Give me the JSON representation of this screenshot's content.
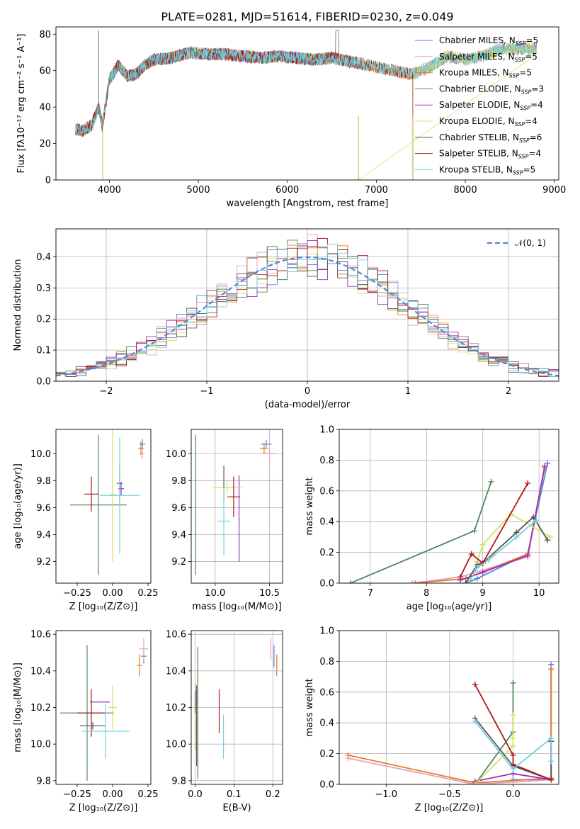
{
  "title": "PLATE=0281, MJD=51614, FIBERID=0230, z=0.049",
  "colors": {
    "chabrier_miles": "#5b84d6",
    "salpeter_miles": "#e7a0c0",
    "kroupa_miles": "#e07b2a",
    "chabrier_elodie": "#4f8a5a",
    "salpeter_elodie": "#9b30c0",
    "kroupa_elodie": "#d8e060",
    "chabrier_stelib": "#555555",
    "salpeter_stelib": "#b01818",
    "kroupa_stelib": "#70d0e0"
  },
  "chart_data": [
    {
      "id": "spectrum",
      "type": "line",
      "xlabel": "wavelength [Angstrom, rest frame]",
      "ylabel": "Flux [fλ10⁻¹⁷ erg cm⁻² s⁻¹ A⁻¹]",
      "xlim": [
        3400,
        9050
      ],
      "ylim": [
        0,
        84
      ],
      "xticks": [
        4000,
        5000,
        6000,
        7000,
        8000,
        9000
      ],
      "yticks": [
        0,
        20,
        40,
        60,
        80
      ],
      "legend_position": "top-right",
      "series": [
        {
          "name": "Chabrier MILES, N_SSP=5",
          "label": "Chabrier MILES, N",
          "sub": "SSP",
          "suffix": "=5",
          "color": "#5b84d6"
        },
        {
          "name": "Salpeter MILES, N_SSP=5",
          "label": "Salpeter MILES, N",
          "sub": "SSP",
          "suffix": "=5",
          "color": "#e7a0c0"
        },
        {
          "name": "Kroupa MILES, N_SSP=5",
          "label": "Kroupa MILES, N",
          "sub": "SSP",
          "suffix": "=5",
          "color": "#e07b2a"
        },
        {
          "name": "Chabrier ELODIE, N_SSP=3",
          "label": "Chabrier ELODIE, N",
          "sub": "SSP",
          "suffix": "=3",
          "color": "#4f8a5a"
        },
        {
          "name": "Salpeter ELODIE, N_SSP=4",
          "label": "Salpeter ELODIE, N",
          "sub": "SSP",
          "suffix": "=4",
          "color": "#9b30c0"
        },
        {
          "name": "Kroupa ELODIE, N_SSP=4",
          "label": "Kroupa ELODIE, N",
          "sub": "SSP",
          "suffix": "=4",
          "color": "#d8e060"
        },
        {
          "name": "Chabrier STELIB, N_SSP=6",
          "label": "Chabrier STELIB, N",
          "sub": "SSP",
          "suffix": "=6",
          "color": "#555555"
        },
        {
          "name": "Salpeter STELIB, N_SSP=4",
          "label": "Salpeter STELIB, N",
          "sub": "SSP",
          "suffix": "=4",
          "color": "#b01818"
        },
        {
          "name": "Kroupa STELIB, N_SSP=5",
          "label": "Kroupa STELIB, N",
          "sub": "SSP",
          "suffix": "=5",
          "color": "#70d0e0"
        }
      ],
      "continuum": {
        "x": [
          3620,
          3700,
          3800,
          3880,
          3920,
          3960,
          4000,
          4100,
          4200,
          4300,
          4400,
          4500,
          4700,
          4900,
          5100,
          5300,
          5500,
          5700,
          5900,
          6100,
          6300,
          6500,
          6700,
          6800,
          7000,
          7200,
          7400,
          7600,
          7800,
          8000,
          8200,
          8400,
          8600,
          8800
        ],
        "y": [
          28,
          27,
          30,
          40,
          30,
          42,
          55,
          63,
          57,
          58,
          63,
          66,
          67,
          70,
          69,
          69,
          68,
          67,
          68,
          67,
          66,
          67,
          65,
          64,
          62,
          60,
          58,
          62,
          68,
          66,
          68,
          72,
          72,
          72
        ]
      },
      "dropouts": [
        3925,
        6800,
        7410
      ]
    },
    {
      "id": "residuals",
      "type": "area",
      "xlabel": "(data-model)/error",
      "ylabel": "Normed distribution",
      "xlim": [
        -2.5,
        2.5
      ],
      "ylim": [
        0,
        0.49
      ],
      "xticks": [
        -2,
        -1,
        0,
        1,
        2
      ],
      "yticks": [
        0.0,
        0.1,
        0.2,
        0.3,
        0.4
      ],
      "grid": true,
      "legend_position": "top-right",
      "reference": {
        "name": "𝒩(0, 1)",
        "mean": 0,
        "sigma": 1,
        "color": "#5b84d6",
        "style": "dashed"
      },
      "bin_width": 0.1
    },
    {
      "id": "age_vs_Z",
      "type": "scatter",
      "xlabel": "Z [log₁₀(Z/Z⊙)]",
      "ylabel": "age  [log₁₀(age/yr)]",
      "xlim": [
        -0.4,
        0.27
      ],
      "ylim": [
        9.04,
        10.18
      ],
      "xticks": [
        -0.25,
        0.0,
        0.25
      ],
      "yticks": [
        9.2,
        9.4,
        9.6,
        9.8,
        10.0
      ],
      "points": [
        {
          "color": "#5b84d6",
          "x": 0.21,
          "xerr": 0.02,
          "y": 10.07,
          "yerr": 0.04
        },
        {
          "color": "#e7a0c0",
          "x": 0.21,
          "xerr": 0.02,
          "y": 10.0,
          "yerr": 0.04
        },
        {
          "color": "#e07b2a",
          "x": 0.2,
          "xerr": 0.02,
          "y": 10.04,
          "yerr": 0.05
        },
        {
          "color": "#4f8a5a",
          "x": -0.1,
          "xerr": 0.2,
          "y": 9.62,
          "yerr": 0.52
        },
        {
          "color": "#9b30c0",
          "x": 0.06,
          "xerr": 0.02,
          "y": 9.74,
          "yerr": 0.05
        },
        {
          "color": "#d8e060",
          "x": 0.0,
          "xerr": 0.02,
          "y": 9.7,
          "yerr": 0.5
        },
        {
          "color": "#555555",
          "x": 0.05,
          "xerr": 0.02,
          "y": 9.78,
          "yerr": 0.13
        },
        {
          "color": "#b01818",
          "x": -0.15,
          "xerr": 0.05,
          "y": 9.7,
          "yerr": 0.13
        },
        {
          "color": "#70d0e0",
          "x": 0.05,
          "xerr": 0.14,
          "y": 9.69,
          "yerr": 0.43
        }
      ]
    },
    {
      "id": "age_vs_mass",
      "type": "scatter",
      "xlabel": "mass [log₁₀(M/M⊙)]",
      "ylabel": "",
      "xlim": [
        9.78,
        10.62
      ],
      "ylim": [
        9.04,
        10.18
      ],
      "xticks": [
        10.0,
        10.5
      ],
      "yticks": [
        9.2,
        9.4,
        9.6,
        9.8,
        10.0
      ],
      "points": [
        {
          "color": "#5b84d6",
          "x": 10.47,
          "xerr": 0.05,
          "y": 10.07,
          "yerr": 0.03
        },
        {
          "color": "#e7a0c0",
          "x": 10.5,
          "xerr": 0.06,
          "y": 10.0,
          "yerr": 0.04
        },
        {
          "color": "#e07b2a",
          "x": 10.45,
          "xerr": 0.04,
          "y": 10.04,
          "yerr": 0.04
        },
        {
          "color": "#4f8a5a",
          "x": 9.82,
          "xerr": 0.0,
          "y": 9.62,
          "yerr": 0.52
        },
        {
          "color": "#9b30c0",
          "x": 10.22,
          "xerr": 0.0,
          "y": 9.52,
          "yerr": 0.32
        },
        {
          "color": "#d8e060",
          "x": 10.11,
          "xerr": 0.13,
          "y": 9.75,
          "yerr": 0.05
        },
        {
          "color": "#555555",
          "x": 10.08,
          "xerr": 0.0,
          "y": 9.78,
          "yerr": 0.13
        },
        {
          "color": "#b01818",
          "x": 10.17,
          "xerr": 0.06,
          "y": 9.68,
          "yerr": 0.15
        },
        {
          "color": "#70d0e0",
          "x": 10.08,
          "xerr": 0.06,
          "y": 9.5,
          "yerr": 0.25
        }
      ]
    },
    {
      "id": "massweight_vs_age",
      "type": "line",
      "xlabel": "age  [log₁₀(age/yr)]",
      "ylabel": "mass weight",
      "xlim": [
        6.45,
        10.35
      ],
      "ylim": [
        0,
        1.0
      ],
      "xticks": [
        7,
        8,
        9,
        10
      ],
      "yticks": [
        0.0,
        0.2,
        0.4,
        0.6,
        0.8,
        1.0
      ],
      "series": [
        {
          "color": "#5b84d6",
          "x": [
            8.7,
            8.9,
            9.8,
            10.15
          ],
          "y": [
            0.0,
            0.03,
            0.19,
            0.78
          ]
        },
        {
          "color": "#e7a0c0",
          "x": [
            7.75,
            8.6,
            9.8,
            10.1
          ],
          "y": [
            0.0,
            0.04,
            0.17,
            0.75
          ]
        },
        {
          "color": "#e07b2a",
          "x": [
            7.8,
            8.7,
            9.8,
            10.1
          ],
          "y": [
            0.0,
            0.03,
            0.19,
            0.75
          ]
        },
        {
          "color": "#4f8a5a",
          "x": [
            6.65,
            8.85,
            9.15
          ],
          "y": [
            0.0,
            0.34,
            0.66
          ]
        },
        {
          "color": "#9b30c0",
          "x": [
            8.6,
            9.0,
            9.8,
            10.1
          ],
          "y": [
            0.02,
            0.07,
            0.18,
            0.76
          ]
        },
        {
          "color": "#d8e060",
          "x": [
            8.9,
            9.0,
            9.5,
            10.2
          ],
          "y": [
            0.14,
            0.25,
            0.45,
            0.3
          ]
        },
        {
          "color": "#555555",
          "x": [
            8.7,
            8.9,
            9.0,
            9.6,
            9.9,
            10.15
          ],
          "y": [
            0.0,
            0.12,
            0.13,
            0.33,
            0.43,
            0.28
          ]
        },
        {
          "color": "#b01818",
          "x": [
            8.6,
            8.8,
            9.0,
            9.8
          ],
          "y": [
            0.04,
            0.19,
            0.13,
            0.65
          ]
        },
        {
          "color": "#70d0e0",
          "x": [
            8.75,
            8.9,
            9.1,
            9.6,
            9.95
          ],
          "y": [
            0.0,
            0.1,
            0.15,
            0.3,
            0.41
          ]
        }
      ]
    },
    {
      "id": "mass_vs_Z",
      "type": "scatter",
      "xlabel": "Z [log₁₀(Z/Z⊙)]",
      "ylabel": "mass [log₁₀(M/M⊙)]",
      "xlim": [
        -0.4,
        0.27
      ],
      "ylim": [
        9.78,
        10.62
      ],
      "xticks": [
        -0.25,
        0.0,
        0.25
      ],
      "yticks": [
        9.8,
        10.0,
        10.2,
        10.4,
        10.6
      ],
      "points": [
        {
          "color": "#5b84d6",
          "x": 0.22,
          "xerr": 0.02,
          "y": 10.48,
          "yerr": 0.04
        },
        {
          "color": "#e7a0c0",
          "x": 0.22,
          "xerr": 0.03,
          "y": 10.52,
          "yerr": 0.06
        },
        {
          "color": "#e07b2a",
          "x": 0.19,
          "xerr": 0.02,
          "y": 10.43,
          "yerr": 0.06
        },
        {
          "color": "#4f8a5a",
          "x": -0.18,
          "xerr": 0.19,
          "y": 10.17,
          "yerr": 0.37
        },
        {
          "color": "#9b30c0",
          "x": -0.09,
          "xerr": 0.07,
          "y": 10.23,
          "yerr": 0.0
        },
        {
          "color": "#d8e060",
          "x": 0.0,
          "xerr": 0.03,
          "y": 10.2,
          "yerr": 0.12
        },
        {
          "color": "#555555",
          "x": -0.14,
          "xerr": 0.09,
          "y": 10.1,
          "yerr": 0.02
        },
        {
          "color": "#b01818",
          "x": -0.15,
          "xerr": 0.1,
          "y": 10.17,
          "yerr": 0.13
        },
        {
          "color": "#70d0e0",
          "x": -0.05,
          "xerr": 0.17,
          "y": 10.07,
          "yerr": 0.15
        }
      ]
    },
    {
      "id": "mass_vs_ebv",
      "type": "scatter",
      "xlabel": "E(B-V)",
      "ylabel": "",
      "xlim": [
        -0.01,
        0.225
      ],
      "ylim": [
        9.78,
        10.62
      ],
      "xticks": [
        0.0,
        0.1,
        0.2
      ],
      "yticks": [
        9.8,
        10.0,
        10.2,
        10.4,
        10.6
      ],
      "points": [
        {
          "color": "#5b84d6",
          "x": 0.203,
          "xerr": 0.0,
          "y": 10.48,
          "yerr": 0.06
        },
        {
          "color": "#e7a0c0",
          "x": 0.195,
          "xerr": 0.0,
          "y": 10.52,
          "yerr": 0.06
        },
        {
          "color": "#e07b2a",
          "x": 0.21,
          "xerr": 0.0,
          "y": 10.43,
          "yerr": 0.06
        },
        {
          "color": "#4f8a5a",
          "x": 0.007,
          "xerr": 0.0,
          "y": 10.17,
          "yerr": 0.36
        },
        {
          "color": "#9b30c0",
          "x": 0.0,
          "xerr": 0.0,
          "y": 10.23,
          "yerr": 0.06
        },
        {
          "color": "#d8e060",
          "x": 0.002,
          "xerr": 0.0,
          "y": 10.15,
          "yerr": 0.18
        },
        {
          "color": "#555555",
          "x": 0.004,
          "xerr": 0.0,
          "y": 10.1,
          "yerr": 0.22
        },
        {
          "color": "#b01818",
          "x": 0.062,
          "xerr": 0.0,
          "y": 10.18,
          "yerr": 0.12
        },
        {
          "color": "#70d0e0",
          "x": 0.073,
          "xerr": 0.0,
          "y": 10.04,
          "yerr": 0.12
        }
      ]
    },
    {
      "id": "massweight_vs_Z",
      "type": "line",
      "xlabel": "Z [log₁₀(Z/Z⊙)]",
      "ylabel": "mass weight",
      "xlim": [
        -1.37,
        0.36
      ],
      "ylim": [
        0,
        1.0
      ],
      "xticks": [
        -1.0,
        -0.5,
        0.0
      ],
      "yticks": [
        0.0,
        0.2,
        0.4,
        0.6,
        0.8,
        1.0
      ],
      "series": [
        {
          "color": "#5b84d6",
          "x": [
            0.0,
            0.3,
            0.3
          ],
          "y": [
            0.03,
            0.03,
            0.78
          ]
        },
        {
          "color": "#e7a0c0",
          "x": [
            -1.3,
            -0.3,
            0.3,
            0.3
          ],
          "y": [
            0.17,
            0.0,
            0.03,
            0.75
          ]
        },
        {
          "color": "#e07b2a",
          "x": [
            -1.3,
            -0.3,
            0.3,
            0.3
          ],
          "y": [
            0.19,
            0.01,
            0.04,
            0.75
          ]
        },
        {
          "color": "#4f8a5a",
          "x": [
            -0.3,
            0.0,
            0.0
          ],
          "y": [
            0.0,
            0.34,
            0.66
          ]
        },
        {
          "color": "#9b30c0",
          "x": [
            -0.3,
            0.0,
            0.3
          ],
          "y": [
            0.02,
            0.07,
            0.03
          ]
        },
        {
          "color": "#d8e060",
          "x": [
            -0.3,
            0.0,
            0.0,
            0.0
          ],
          "y": [
            0.0,
            0.25,
            0.3,
            0.45
          ]
        },
        {
          "color": "#555555",
          "x": [
            -0.3,
            0.0,
            0.3,
            0.3
          ],
          "y": [
            0.43,
            0.12,
            0.03,
            0.28
          ]
        },
        {
          "color": "#b01818",
          "x": [
            -0.3,
            0.0,
            0.0,
            0.3
          ],
          "y": [
            0.65,
            0.19,
            0.13,
            0.03
          ]
        },
        {
          "color": "#70d0e0",
          "x": [
            -0.3,
            0.0,
            0.3,
            0.3
          ],
          "y": [
            0.41,
            0.1,
            0.3,
            0.15
          ]
        }
      ]
    }
  ]
}
